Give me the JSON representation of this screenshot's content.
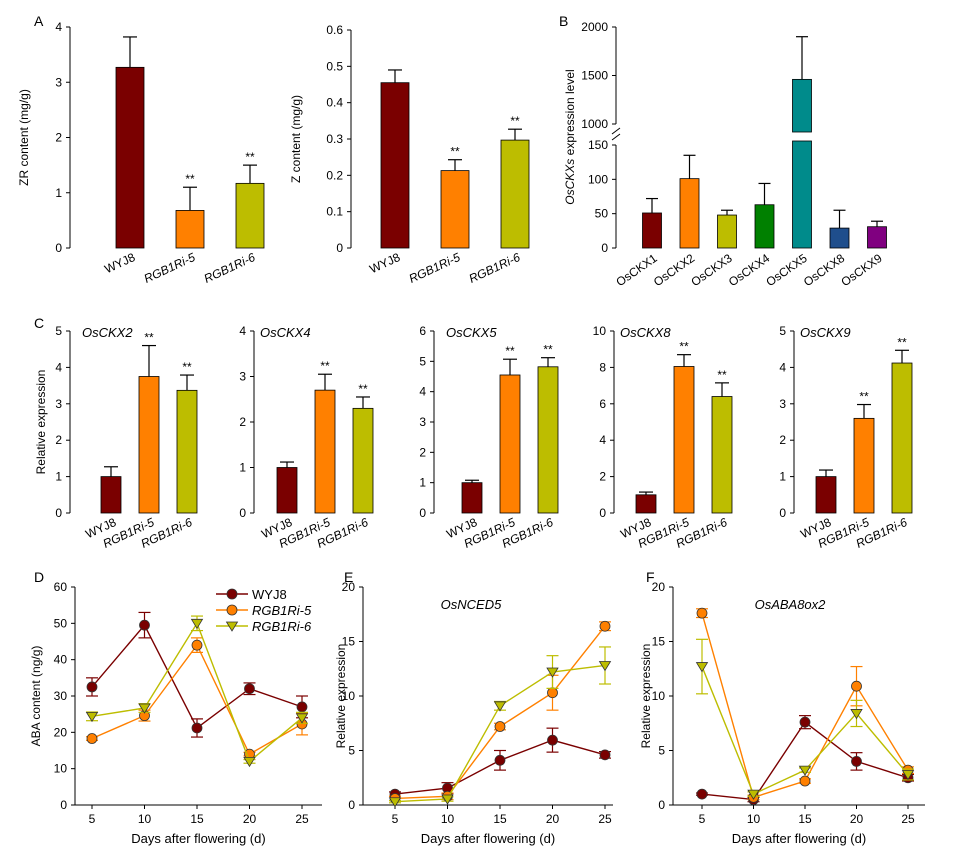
{
  "colors": {
    "WYJ8": "#7a0000",
    "RGB1Ri-5": "#ff8000",
    "RGB1Ri-6": "#bdbd00",
    "OsCKX1": "#7a0000",
    "OsCKX2": "#ff8000",
    "OsCKX3": "#bdbd00",
    "OsCKX4": "#008000",
    "OsCKX5": "#008b8b",
    "OsCKX8": "#1f4e8c",
    "OsCKX9": "#800080",
    "errorbar": "#000000"
  },
  "chart_data": [
    {
      "id": "A1",
      "panel_letter": "A",
      "type": "bar",
      "title": "",
      "ylabel": "ZR content (mg/g)",
      "ylim": [
        0,
        4
      ],
      "yticks": [
        "0",
        "1",
        "2",
        "3",
        "4"
      ],
      "categories": [
        "WYJ8",
        "RGB1Ri-5",
        "RGB1Ri-6"
      ],
      "values": [
        3.27,
        0.68,
        1.17
      ],
      "errors": [
        0.55,
        0.42,
        0.33
      ],
      "annotations": [
        "",
        "**",
        "**"
      ]
    },
    {
      "id": "A2",
      "type": "bar",
      "title": "",
      "ylabel": "Z content (mg/g)",
      "ylim": [
        0,
        0.6
      ],
      "yticks": [
        "0",
        "0.1",
        "0.2",
        "0.3",
        "0.4",
        "0.5",
        "0.6"
      ],
      "categories": [
        "WYJ8",
        "RGB1Ri-5",
        "RGB1Ri-6"
      ],
      "values": [
        0.455,
        0.213,
        0.297
      ],
      "errors": [
        0.035,
        0.03,
        0.03
      ],
      "annotations": [
        "",
        "**",
        "**"
      ]
    },
    {
      "id": "B",
      "panel_letter": "B",
      "type": "bar",
      "title": "",
      "ylabel_parts": [
        "OsCKXs",
        " expression level"
      ],
      "axis_break": [
        150,
        1000
      ],
      "yticks_lower": [
        "0",
        "50",
        "100",
        "150"
      ],
      "yticks_upper": [
        "1000",
        "1500",
        "2000"
      ],
      "categories": [
        "OsCKX1",
        "OsCKX2",
        "OsCKX3",
        "OsCKX4",
        "OsCKX5",
        "OsCKX8",
        "OsCKX9"
      ],
      "values": [
        51,
        101,
        48,
        63,
        1460,
        29,
        31
      ],
      "errors": [
        21,
        34,
        7,
        31,
        440,
        26,
        8
      ]
    },
    {
      "id": "C1",
      "panel_letter": "C",
      "type": "bar",
      "title": "OsCKX2",
      "ylabel": "Relative expression",
      "ylim": [
        0,
        5
      ],
      "yticks": [
        "0",
        "1",
        "2",
        "3",
        "4",
        "5"
      ],
      "categories": [
        "WYJ8",
        "RGB1Ri-5",
        "RGB1Ri-6"
      ],
      "values": [
        1.0,
        3.75,
        3.37
      ],
      "errors": [
        0.27,
        0.85,
        0.42
      ],
      "annotations": [
        "",
        "**",
        "**"
      ]
    },
    {
      "id": "C2",
      "type": "bar",
      "title": "OsCKX4",
      "ylim": [
        0,
        4
      ],
      "yticks": [
        "0",
        "1",
        "2",
        "3",
        "4"
      ],
      "categories": [
        "WYJ8",
        "RGB1Ri-5",
        "RGB1Ri-6"
      ],
      "values": [
        1.0,
        2.7,
        2.3
      ],
      "errors": [
        0.12,
        0.35,
        0.25
      ],
      "annotations": [
        "",
        "**",
        "**"
      ]
    },
    {
      "id": "C3",
      "type": "bar",
      "title": "OsCKX5",
      "ylim": [
        0,
        6
      ],
      "yticks": [
        "0",
        "1",
        "2",
        "3",
        "4",
        "5",
        "6"
      ],
      "categories": [
        "WYJ8",
        "RGB1Ri-5",
        "RGB1Ri-6"
      ],
      "values": [
        1.0,
        4.55,
        4.82
      ],
      "errors": [
        0.08,
        0.52,
        0.3
      ],
      "annotations": [
        "",
        "**",
        "**"
      ]
    },
    {
      "id": "C4",
      "type": "bar",
      "title": "OsCKX8",
      "ylim": [
        0,
        10
      ],
      "yticks": [
        "0",
        "2",
        "4",
        "6",
        "8",
        "10"
      ],
      "categories": [
        "WYJ8",
        "RGB1Ri-5",
        "RGB1Ri-6"
      ],
      "values": [
        1.0,
        8.05,
        6.4
      ],
      "errors": [
        0.15,
        0.65,
        0.75
      ],
      "annotations": [
        "",
        "**",
        "**"
      ]
    },
    {
      "id": "C5",
      "type": "bar",
      "title": "OsCKX9",
      "ylim": [
        0,
        5
      ],
      "yticks": [
        "0",
        "1",
        "2",
        "3",
        "4",
        "5"
      ],
      "categories": [
        "WYJ8",
        "RGB1Ri-5",
        "RGB1Ri-6"
      ],
      "values": [
        1.0,
        2.6,
        4.12
      ],
      "errors": [
        0.18,
        0.38,
        0.35
      ],
      "annotations": [
        "",
        "**",
        "**"
      ]
    },
    {
      "id": "D",
      "panel_letter": "D",
      "type": "line",
      "title": "",
      "xlabel": "Days after flowering (d)",
      "ylabel": "ABA content (ng/g)",
      "ylim": [
        0,
        60
      ],
      "yticks": [
        "0",
        "10",
        "20",
        "30",
        "40",
        "50",
        "60"
      ],
      "x": [
        5,
        10,
        15,
        20,
        25
      ],
      "xticks": [
        "5",
        "10",
        "15",
        "20",
        "25"
      ],
      "legend_position": "top-center",
      "series": [
        {
          "name": "WYJ8",
          "values": [
            32.5,
            49.5,
            21.2,
            32.0,
            27.0
          ],
          "errors": [
            2.5,
            3.5,
            2.5,
            1.6,
            3.0
          ],
          "marker": "circle"
        },
        {
          "name": "RGB1Ri-5",
          "values": [
            18.3,
            24.6,
            44.0,
            14.0,
            22.3
          ],
          "errors": [
            0.5,
            1.5,
            2.0,
            0.5,
            3.0
          ],
          "marker": "circle"
        },
        {
          "name": "RGB1Ri-6",
          "values": [
            24.4,
            26.7,
            50.0,
            12.0,
            24.0
          ],
          "errors": [
            1.2,
            1.2,
            2.0,
            0.5,
            1.5
          ],
          "marker": "triangle"
        }
      ]
    },
    {
      "id": "E",
      "panel_letter": "E",
      "type": "line",
      "title": "OsNCED5",
      "xlabel": "Days after flowering (d)",
      "ylabel": "Relative expression",
      "ylim": [
        0,
        20
      ],
      "yticks": [
        "0",
        "5",
        "10",
        "15",
        "20"
      ],
      "x": [
        5,
        10,
        15,
        20,
        25
      ],
      "xticks": [
        "5",
        "10",
        "15",
        "20",
        "25"
      ],
      "series": [
        {
          "name": "WYJ8",
          "values": [
            1.0,
            1.55,
            4.1,
            5.95,
            4.6
          ],
          "errors": [
            0.2,
            0.5,
            0.9,
            1.1,
            0.3
          ],
          "marker": "circle"
        },
        {
          "name": "RGB1Ri-5",
          "values": [
            0.6,
            0.8,
            7.2,
            10.3,
            16.4
          ],
          "errors": [
            0.2,
            0.3,
            0.3,
            1.6,
            0.4
          ],
          "marker": "circle"
        },
        {
          "name": "RGB1Ri-6",
          "values": [
            0.3,
            0.55,
            9.1,
            12.2,
            12.8
          ],
          "errors": [
            0.1,
            0.2,
            0.4,
            1.5,
            1.7
          ],
          "marker": "triangle"
        }
      ]
    },
    {
      "id": "F",
      "panel_letter": "F",
      "type": "line",
      "title": "OsABA8ox2",
      "xlabel": "Days after flowering (d)",
      "ylabel": "Relative expression",
      "ylim": [
        0,
        20
      ],
      "yticks": [
        "0",
        "5",
        "10",
        "15",
        "20"
      ],
      "x": [
        5,
        10,
        15,
        20,
        25
      ],
      "xticks": [
        "5",
        "10",
        "15",
        "20",
        "25"
      ],
      "series": [
        {
          "name": "WYJ8",
          "values": [
            1.0,
            0.5,
            7.6,
            4.0,
            2.5
          ],
          "errors": [
            0.1,
            0.2,
            0.6,
            0.8,
            0.3
          ],
          "marker": "circle"
        },
        {
          "name": "RGB1Ri-5",
          "values": [
            17.6,
            0.7,
            2.2,
            10.9,
            3.2
          ],
          "errors": [
            0.4,
            0.2,
            0.2,
            1.8,
            0.3
          ],
          "marker": "circle"
        },
        {
          "name": "RGB1Ri-6",
          "values": [
            12.7,
            1.0,
            3.2,
            8.4,
            2.8
          ],
          "errors": [
            2.5,
            0.2,
            0.2,
            1.2,
            0.5
          ],
          "marker": "triangle"
        }
      ]
    }
  ]
}
